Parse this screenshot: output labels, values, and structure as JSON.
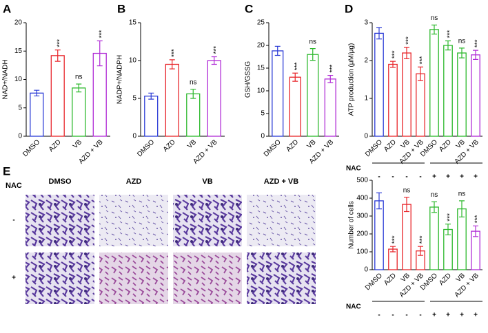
{
  "chart_data": [
    {
      "type": "bar",
      "panel": "A",
      "y_label": "NAD+/NADH",
      "categories": [
        "DMSO",
        "AZD",
        "VB",
        "AZD + VB"
      ],
      "values": [
        7.6,
        14.2,
        8.5,
        14.6
      ],
      "errors": [
        0.5,
        1.0,
        0.7,
        2.2
      ],
      "annotations": [
        null,
        "***",
        "ns",
        "***"
      ],
      "colors": [
        "#2b3bd6",
        "#e8252a",
        "#2bb82b",
        "#b02bd6"
      ],
      "ylim": [
        0,
        20
      ],
      "yticks": [
        0,
        5,
        10,
        15,
        20
      ]
    },
    {
      "type": "bar",
      "panel": "B",
      "y_label": "NADP+/NADPH",
      "categories": [
        "DMSO",
        "AZD",
        "VB",
        "AZD + VB"
      ],
      "values": [
        5.3,
        9.5,
        5.6,
        10.0
      ],
      "errors": [
        0.4,
        0.6,
        0.6,
        0.5
      ],
      "annotations": [
        null,
        "***",
        "ns",
        "***"
      ],
      "colors": [
        "#2b3bd6",
        "#e8252a",
        "#2bb82b",
        "#b02bd6"
      ],
      "ylim": [
        0,
        15
      ],
      "yticks": [
        0,
        5,
        10,
        15
      ]
    },
    {
      "type": "bar",
      "panel": "C",
      "y_label": "GSH/GSSG",
      "categories": [
        "DMSO",
        "AZD",
        "VB",
        "AZD + VB"
      ],
      "values": [
        18.8,
        13.0,
        18.0,
        12.6
      ],
      "errors": [
        1.0,
        0.9,
        1.3,
        0.8
      ],
      "annotations": [
        null,
        "***",
        "ns",
        "***"
      ],
      "colors": [
        "#2b3bd6",
        "#e8252a",
        "#2bb82b",
        "#b02bd6"
      ],
      "ylim": [
        0,
        25
      ],
      "yticks": [
        0,
        5,
        10,
        15,
        20,
        25
      ]
    },
    {
      "type": "bar",
      "panel": "D",
      "y_label": "ATP production (μM/μg)",
      "categories": [
        "DMSO",
        "AZD",
        "VB",
        "AZD + VB",
        "DMSO",
        "AZD",
        "VB",
        "AZD + VB"
      ],
      "values": [
        2.72,
        1.9,
        2.2,
        1.65,
        2.82,
        2.4,
        2.2,
        2.15
      ],
      "errors": [
        0.15,
        0.08,
        0.15,
        0.18,
        0.12,
        0.12,
        0.13,
        0.12
      ],
      "annotations": [
        null,
        "***",
        "***",
        "***",
        "ns",
        "***",
        "ns",
        "***"
      ],
      "colors": [
        "#2b3bd6",
        "#e8252a",
        "#e8252a",
        "#e8252a",
        "#2bb82b",
        "#2bb82b",
        "#2bb82b",
        "#b02bd6"
      ],
      "ylim": [
        0,
        3
      ],
      "yticks": [
        0,
        1,
        2,
        3
      ],
      "nac": {
        "label": "NAC",
        "signs": [
          "-",
          "-",
          "-",
          "-",
          "+",
          "+",
          "+",
          "+"
        ]
      }
    },
    {
      "type": "bar",
      "y_label": "Number of cells",
      "categories": [
        "DMSO",
        "AZD",
        "VB",
        "AZD + VB",
        "DMSO",
        "AZD",
        "VB",
        "AZD + VB"
      ],
      "values": [
        385,
        115,
        365,
        105,
        350,
        225,
        340,
        215
      ],
      "errors": [
        45,
        15,
        40,
        25,
        30,
        30,
        45,
        30
      ],
      "annotations": [
        null,
        "***",
        "ns",
        "***",
        "ns",
        "***",
        "ns",
        "***"
      ],
      "colors": [
        "#2b3bd6",
        "#e8252a",
        "#e8252a",
        "#e8252a",
        "#2bb82b",
        "#2bb82b",
        "#2bb82b",
        "#b02bd6"
      ],
      "ylim": [
        0,
        500
      ],
      "yticks": [
        0,
        100,
        200,
        300,
        400,
        500
      ],
      "nac": {
        "label": "NAC",
        "signs": [
          "-",
          "-",
          "-",
          "-",
          "+",
          "+",
          "+",
          "+"
        ]
      }
    }
  ],
  "micrographs": {
    "panel": "E",
    "row_title": "NAC",
    "columns": [
      "DMSO",
      "AZD",
      "VB",
      "AZD + VB"
    ],
    "rows": [
      "-",
      "+"
    ]
  }
}
